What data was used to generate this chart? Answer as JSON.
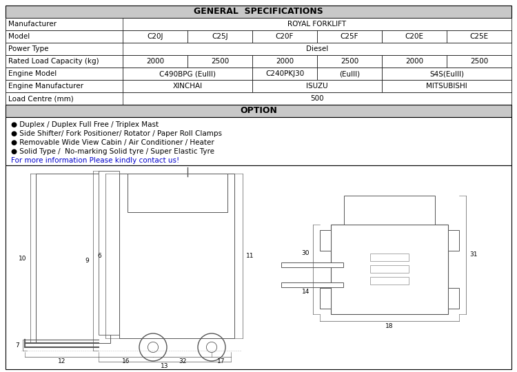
{
  "title": "GENERAL  SPECIFICATIONS",
  "option_title": "OPTION",
  "table_header_bg": "#c8c8c8",
  "table_row_bg": "#ffffff",
  "table_border": "#000000",
  "models": [
    "C20J",
    "C25J",
    "C20F",
    "C25F",
    "C20E",
    "C25E"
  ],
  "loads": [
    "2000",
    "2500",
    "2000",
    "2500",
    "2000",
    "2500"
  ],
  "options": [
    "● Duplex / Duplex Full Free / Triplex Mast",
    "● Side Shifter/ Fork Positioner/ Rotator / Paper Roll Clamps",
    "● Removable Wide View Cabin / Air Conditioner / Heater",
    "● Solid Type /  No-marking Solid tyre / Super Elastic Tyre"
  ],
  "contact_text": "For more information Please kindly contact us!",
  "contact_color": "#0000cc",
  "fig_bg": "#ffffff",
  "font_size_title": 9,
  "font_size_cell": 7.5,
  "font_size_option": 7.5,
  "font_size_dim": 6.5
}
